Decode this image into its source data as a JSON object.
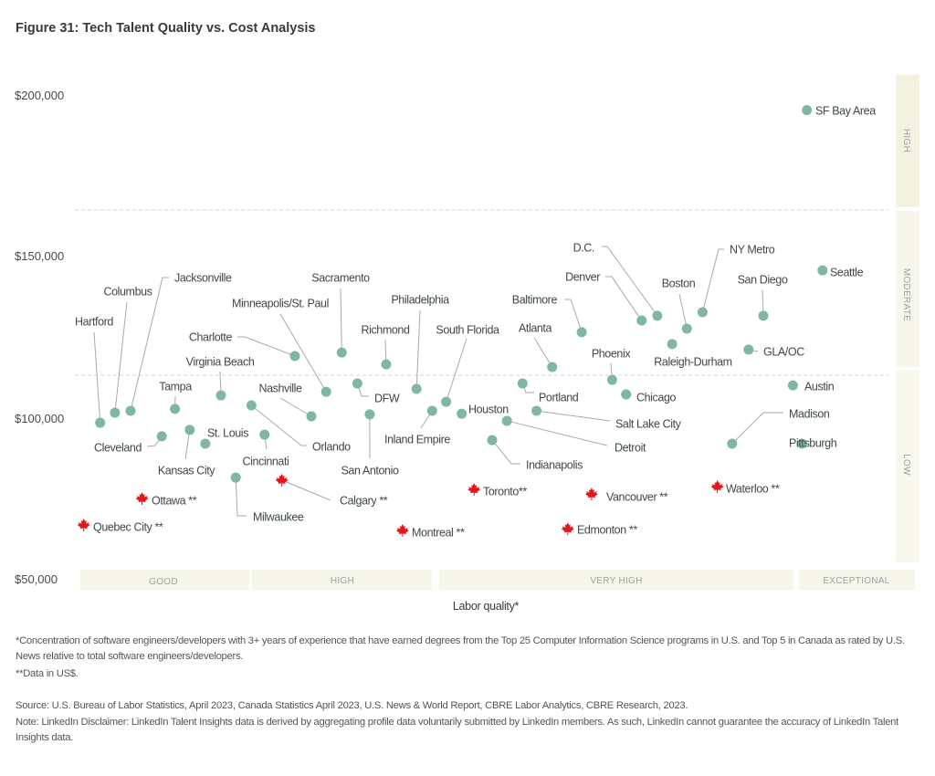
{
  "title": "Figure 31: Tech Talent Quality vs. Cost Analysis",
  "chart_data": {
    "type": "scatter",
    "title": "Figure 31: Tech Talent Quality vs. Cost Analysis",
    "xlabel": "Labor quality*",
    "ylabel": "",
    "ylim": [
      50000,
      200000
    ],
    "yticks": [
      "$200,000",
      "$150,000",
      "$100,000",
      "$50,000"
    ],
    "xlim": [
      0,
      100
    ],
    "x_scale_note": "relative position along unlabelled labor-quality axis",
    "grid": false,
    "x_bands": [
      {
        "label": "GOOD"
      },
      {
        "label": "HIGH"
      },
      {
        "label": "VERY HIGH"
      },
      {
        "label": "EXCEPTIONAL"
      }
    ],
    "y_bands": [
      {
        "label": "HIGH"
      },
      {
        "label": "MODERATE"
      },
      {
        "label": "LOW"
      }
    ],
    "colors": {
      "us_marker": "#80b6a6",
      "canada_marker": "#e8141b",
      "band_fill": "#f5f5e9"
    },
    "points": [
      {
        "name": "SF Bay Area",
        "x": 89.3,
        "y": 195000,
        "country": "US"
      },
      {
        "name": "Seattle",
        "x": 91.2,
        "y": 145300,
        "country": "US"
      },
      {
        "name": "D.C.",
        "x": 71.1,
        "y": 131200,
        "country": "US"
      },
      {
        "name": "Denver",
        "x": 69.2,
        "y": 129700,
        "country": "US"
      },
      {
        "name": "NY Metro",
        "x": 76.6,
        "y": 132300,
        "country": "US"
      },
      {
        "name": "Boston",
        "x": 74.7,
        "y": 127200,
        "country": "US"
      },
      {
        "name": "San Diego",
        "x": 84.0,
        "y": 131200,
        "country": "US"
      },
      {
        "name": "Baltimore",
        "x": 61.9,
        "y": 126100,
        "country": "US"
      },
      {
        "name": "Raleigh-Durham",
        "x": 72.9,
        "y": 122400,
        "country": "US"
      },
      {
        "name": "GLA/OC",
        "x": 82.2,
        "y": 120700,
        "country": "US"
      },
      {
        "name": "Atlanta",
        "x": 58.3,
        "y": 115300,
        "country": "US"
      },
      {
        "name": "Phoenix",
        "x": 65.6,
        "y": 111300,
        "country": "US"
      },
      {
        "name": "Chicago",
        "x": 67.3,
        "y": 106800,
        "country": "US"
      },
      {
        "name": "Portland",
        "x": 54.7,
        "y": 110200,
        "country": "US"
      },
      {
        "name": "Salt Lake City",
        "x": 56.4,
        "y": 101700,
        "country": "US"
      },
      {
        "name": "Houston",
        "x": 47.3,
        "y": 100800,
        "country": "US"
      },
      {
        "name": "Detroit",
        "x": 52.8,
        "y": 98600,
        "country": "US"
      },
      {
        "name": "Indianapolis",
        "x": 51.0,
        "y": 92600,
        "country": "US"
      },
      {
        "name": "Inland Empire",
        "x": 43.7,
        "y": 101700,
        "country": "US"
      },
      {
        "name": "South Florida",
        "x": 45.4,
        "y": 104500,
        "country": "US"
      },
      {
        "name": "Austin",
        "x": 87.6,
        "y": 109600,
        "country": "US"
      },
      {
        "name": "Madison",
        "x": 80.2,
        "y": 91500,
        "country": "US"
      },
      {
        "name": "Pittsburgh",
        "x": 88.7,
        "y": 91500,
        "country": "US"
      },
      {
        "name": "Hartford",
        "x": 3.3,
        "y": 98000,
        "country": "US"
      },
      {
        "name": "Columbus",
        "x": 5.1,
        "y": 101100,
        "country": "US"
      },
      {
        "name": "Jacksonville",
        "x": 7.0,
        "y": 101700,
        "country": "US"
      },
      {
        "name": "Tampa",
        "x": 12.4,
        "y": 102300,
        "country": "US"
      },
      {
        "name": "Virginia Beach",
        "x": 18.0,
        "y": 106500,
        "country": "US"
      },
      {
        "name": "Charlotte",
        "x": 27.0,
        "y": 118700,
        "country": "US"
      },
      {
        "name": "Minneapolis/St. Paul",
        "x": 30.8,
        "y": 107600,
        "country": "US"
      },
      {
        "name": "Sacramento",
        "x": 32.7,
        "y": 119800,
        "country": "US"
      },
      {
        "name": "Richmond",
        "x": 38.1,
        "y": 116100,
        "country": "US"
      },
      {
        "name": "Philadelphia",
        "x": 41.8,
        "y": 108500,
        "country": "US"
      },
      {
        "name": "DFW",
        "x": 34.6,
        "y": 110200,
        "country": "US"
      },
      {
        "name": "Nashville",
        "x": 29.0,
        "y": 100000,
        "country": "US"
      },
      {
        "name": "Orlando",
        "x": 21.7,
        "y": 103400,
        "country": "US"
      },
      {
        "name": "San Antonio",
        "x": 36.1,
        "y": 100600,
        "country": "US"
      },
      {
        "name": "Cleveland",
        "x": 10.8,
        "y": 93800,
        "country": "US"
      },
      {
        "name": "Kansas City",
        "x": 14.2,
        "y": 95800,
        "country": "US"
      },
      {
        "name": "St. Louis",
        "x": 16.1,
        "y": 91500,
        "country": "US"
      },
      {
        "name": "Cincinnati",
        "x": 23.3,
        "y": 94300,
        "country": "US"
      },
      {
        "name": "Milwaukee",
        "x": 19.8,
        "y": 81000,
        "country": "US"
      },
      {
        "name": "Ottawa **",
        "x": 8.4,
        "y": 74500,
        "country": "Canada"
      },
      {
        "name": "Quebec City **",
        "x": 1.3,
        "y": 66300,
        "country": "Canada"
      },
      {
        "name": "Calgary **",
        "x": 25.4,
        "y": 80200,
        "country": "Canada"
      },
      {
        "name": "Montreal **",
        "x": 40.1,
        "y": 64600,
        "country": "Canada"
      },
      {
        "name": "Toronto**",
        "x": 48.8,
        "y": 77300,
        "country": "Canada"
      },
      {
        "name": "Vancouver **",
        "x": 63.1,
        "y": 75900,
        "country": "Canada"
      },
      {
        "name": "Edmonton **",
        "x": 60.2,
        "y": 65100,
        "country": "Canada"
      },
      {
        "name": "Waterloo **",
        "x": 78.4,
        "y": 78200,
        "country": "Canada"
      }
    ]
  },
  "footnotes": {
    "note1": "*Concentration of software engineers/developers with 3+ years of experience that have earned degrees from the Top 25 Computer Information Science programs in U.S. and Top 5 in Canada as rated by U.S. News relative to total software engineers/developers.",
    "note2": "**Data in US$.",
    "source": "Source: U.S. Bureau of Labor Statistics, April 2023, Canada Statistics April 2023, U.S. News & World Report, CBRE Labor Analytics, CBRE Research, 2023.",
    "disclaimer": "Note: LinkedIn Disclaimer: LinkedIn Talent Insights data is derived by aggregating profile data voluntarily submitted by LinkedIn members. As such, LinkedIn cannot guarantee the accuracy of LinkedIn Talent Insights data."
  }
}
